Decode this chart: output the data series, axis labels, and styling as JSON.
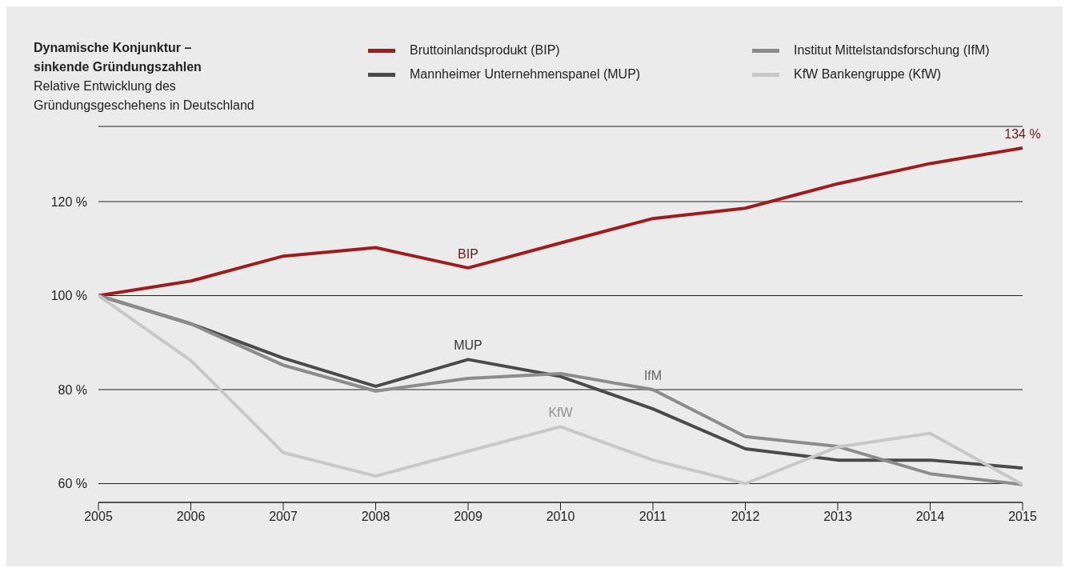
{
  "chart_data": {
    "type": "line",
    "title": "Dynamische Konjunktur –\nsinkende Gründungszahlen",
    "subtitle": "Relative Entwicklung des Gründungsgeschehens in Deutschland",
    "x": [
      2005,
      2006,
      2007,
      2008,
      2009,
      2010,
      2011,
      2012,
      2013,
      2014,
      2015
    ],
    "xlim": [
      2005,
      2015
    ],
    "xticks": [
      2005,
      2006,
      2007,
      2008,
      2009,
      2010,
      2011,
      2012,
      2013,
      2014,
      2015
    ],
    "ylim": [
      56,
      136
    ],
    "yticks": [
      {
        "value": 60,
        "label": "60 %"
      },
      {
        "value": 80,
        "label": "80 %"
      },
      {
        "value": 100,
        "label": "100 %"
      },
      {
        "value": 120,
        "label": "120 %"
      }
    ],
    "grid": "y",
    "legend": "top",
    "marker": "none",
    "line_style": "solid",
    "series": [
      {
        "name": "Bruttoinlandsprodukt (BIP)",
        "color": "#a01c1c",
        "values": [
          100,
          103.1,
          108.4,
          110.2,
          105.9,
          111.2,
          116.4,
          118.6,
          123.8,
          128.1,
          131.4
        ]
      },
      {
        "name": "Mannheimer Unternehmenspanel (MUP)",
        "color": "#4a4a4a",
        "values": [
          100,
          94,
          86.7,
          80.7,
          86.4,
          82.8,
          75.9,
          67.4,
          65,
          65,
          63.3
        ]
      },
      {
        "name": "Institut Mittelstandsforschung (IfM)",
        "color": "#8c8c8c",
        "values": [
          100,
          94,
          85.2,
          79.7,
          82.4,
          83.4,
          80,
          70,
          67.9,
          62.1,
          59.8
        ]
      },
      {
        "name": "KfW Bankengruppe (KfW)",
        "color": "#c8c8c8",
        "values": [
          100,
          86.2,
          66.6,
          61.6,
          66.9,
          72.1,
          65,
          60,
          67.8,
          70.7,
          59.8
        ]
      }
    ],
    "annotations": [
      {
        "text": "134 %",
        "x": 2015,
        "y": 131.4
      },
      {
        "text": "BIP",
        "x": 2009,
        "y": 105.9
      },
      {
        "text": "MUP",
        "x": 2009,
        "y": 86.4
      },
      {
        "text": "IfM",
        "x": 2011,
        "y": 80
      },
      {
        "text": "KfW",
        "x": 2010,
        "y": 72.1
      }
    ]
  }
}
